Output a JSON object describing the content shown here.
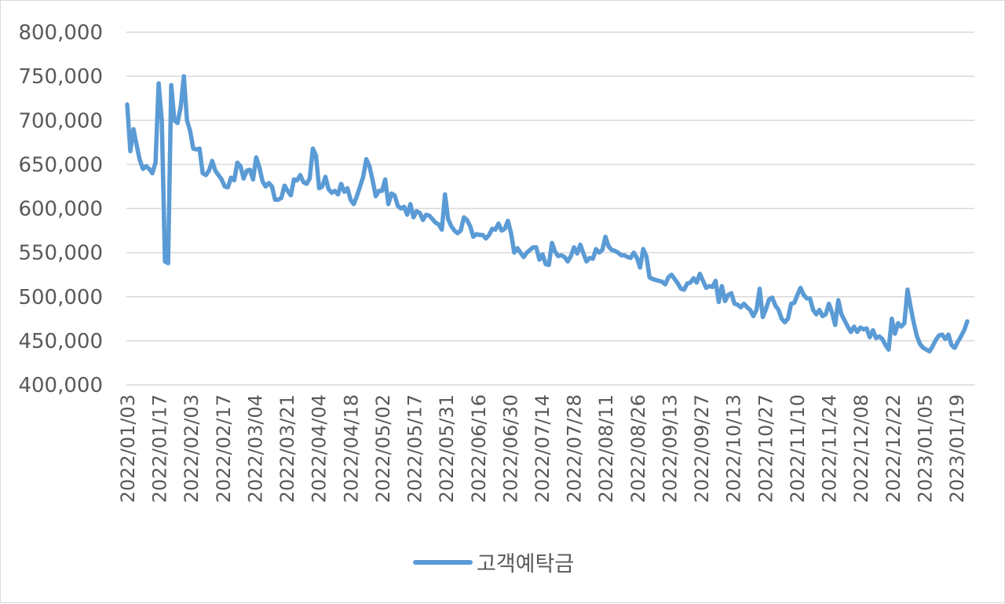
{
  "chart_data": {
    "type": "line",
    "title": "",
    "xlabel": "",
    "ylabel": "",
    "ylim": [
      400000,
      800000
    ],
    "y_ticks": [
      "400,000",
      "450,000",
      "500,000",
      "550,000",
      "600,000",
      "650,000",
      "700,000",
      "750,000",
      "800,000"
    ],
    "y_tick_values": [
      400000,
      450000,
      500000,
      550000,
      600000,
      650000,
      700000,
      750000,
      800000
    ],
    "x_ticks": [
      "2022/01/03",
      "2022/01/17",
      "2022/02/03",
      "2022/02/17",
      "2022/03/04",
      "2022/03/21",
      "2022/04/04",
      "2022/04/18",
      "2022/05/02",
      "2022/05/17",
      "2022/05/31",
      "2022/06/16",
      "2022/06/30",
      "2022/07/14",
      "2022/07/28",
      "2022/08/11",
      "2022/08/26",
      "2022/09/13",
      "2022/09/27",
      "2022/10/13",
      "2022/10/27",
      "2022/11/10",
      "2022/11/24",
      "2022/12/08",
      "2022/12/22",
      "2023/01/05",
      "2023/01/19"
    ],
    "grid": true,
    "legend_position": "bottom",
    "colors": {
      "series": "#5b9bd5",
      "grid": "#d9d9d9",
      "text": "#595959"
    },
    "series": [
      {
        "name": "고객예탁금",
        "values": [
          718000,
          665000,
          690000,
          672000,
          655000,
          645000,
          648000,
          645000,
          640000,
          652000,
          742000,
          700000,
          540000,
          538000,
          740000,
          700000,
          697000,
          715000,
          750000,
          700000,
          688000,
          668000,
          667000,
          668000,
          640000,
          638000,
          643000,
          654000,
          643000,
          638000,
          633000,
          625000,
          624000,
          635000,
          632000,
          652000,
          648000,
          634000,
          643000,
          644000,
          633000,
          658000,
          647000,
          631000,
          625000,
          629000,
          625000,
          610000,
          610000,
          612000,
          626000,
          620000,
          615000,
          633000,
          632000,
          638000,
          630000,
          628000,
          634000,
          668000,
          660000,
          623000,
          625000,
          636000,
          622000,
          618000,
          620000,
          616000,
          628000,
          619000,
          623000,
          610000,
          605000,
          614000,
          625000,
          636000,
          656000,
          648000,
          632000,
          614000,
          620000,
          620000,
          633000,
          605000,
          617000,
          615000,
          603000,
          600000,
          602000,
          593000,
          605000,
          590000,
          597000,
          595000,
          587000,
          593000,
          592000,
          588000,
          584000,
          582000,
          576000,
          616000,
          588000,
          580000,
          575000,
          572000,
          575000,
          590000,
          587000,
          580000,
          568000,
          571000,
          570000,
          570000,
          566000,
          570000,
          577000,
          576000,
          583000,
          575000,
          577000,
          586000,
          572000,
          550000,
          555000,
          550000,
          545000,
          550000,
          553000,
          556000,
          556000,
          542000,
          548000,
          537000,
          536000,
          561000,
          551000,
          546000,
          547000,
          545000,
          540000,
          546000,
          556000,
          549000,
          559000,
          549000,
          540000,
          544000,
          543000,
          554000,
          550000,
          553000,
          568000,
          557000,
          553000,
          552000,
          550000,
          547000,
          547000,
          545000,
          544000,
          550000,
          544000,
          533000,
          554000,
          546000,
          522000,
          520000,
          519000,
          518000,
          517000,
          514000,
          522000,
          525000,
          520000,
          515000,
          509000,
          508000,
          515000,
          516000,
          521000,
          516000,
          526000,
          518000,
          510000,
          512000,
          511000,
          518000,
          494000,
          512000,
          495000,
          502000,
          504000,
          492000,
          491000,
          488000,
          492000,
          488000,
          485000,
          478000,
          485000,
          509000,
          477000,
          486000,
          497000,
          499000,
          490000,
          485000,
          475000,
          471000,
          475000,
          492000,
          493000,
          502000,
          510000,
          502000,
          498000,
          498000,
          485000,
          480000,
          485000,
          478000,
          480000,
          492000,
          482000,
          468000,
          496000,
          480000,
          473000,
          466000,
          460000,
          466000,
          460000,
          465000,
          463000,
          464000,
          454000,
          462000,
          453000,
          455000,
          452000,
          445000,
          440000,
          475000,
          458000,
          470000,
          466000,
          470000,
          508000,
          488000,
          470000,
          455000,
          446000,
          442000,
          440000,
          438000,
          444000,
          451000,
          456000,
          457000,
          452000,
          457000,
          445000,
          442000,
          449000,
          455000,
          462000,
          472000
        ]
      }
    ]
  }
}
